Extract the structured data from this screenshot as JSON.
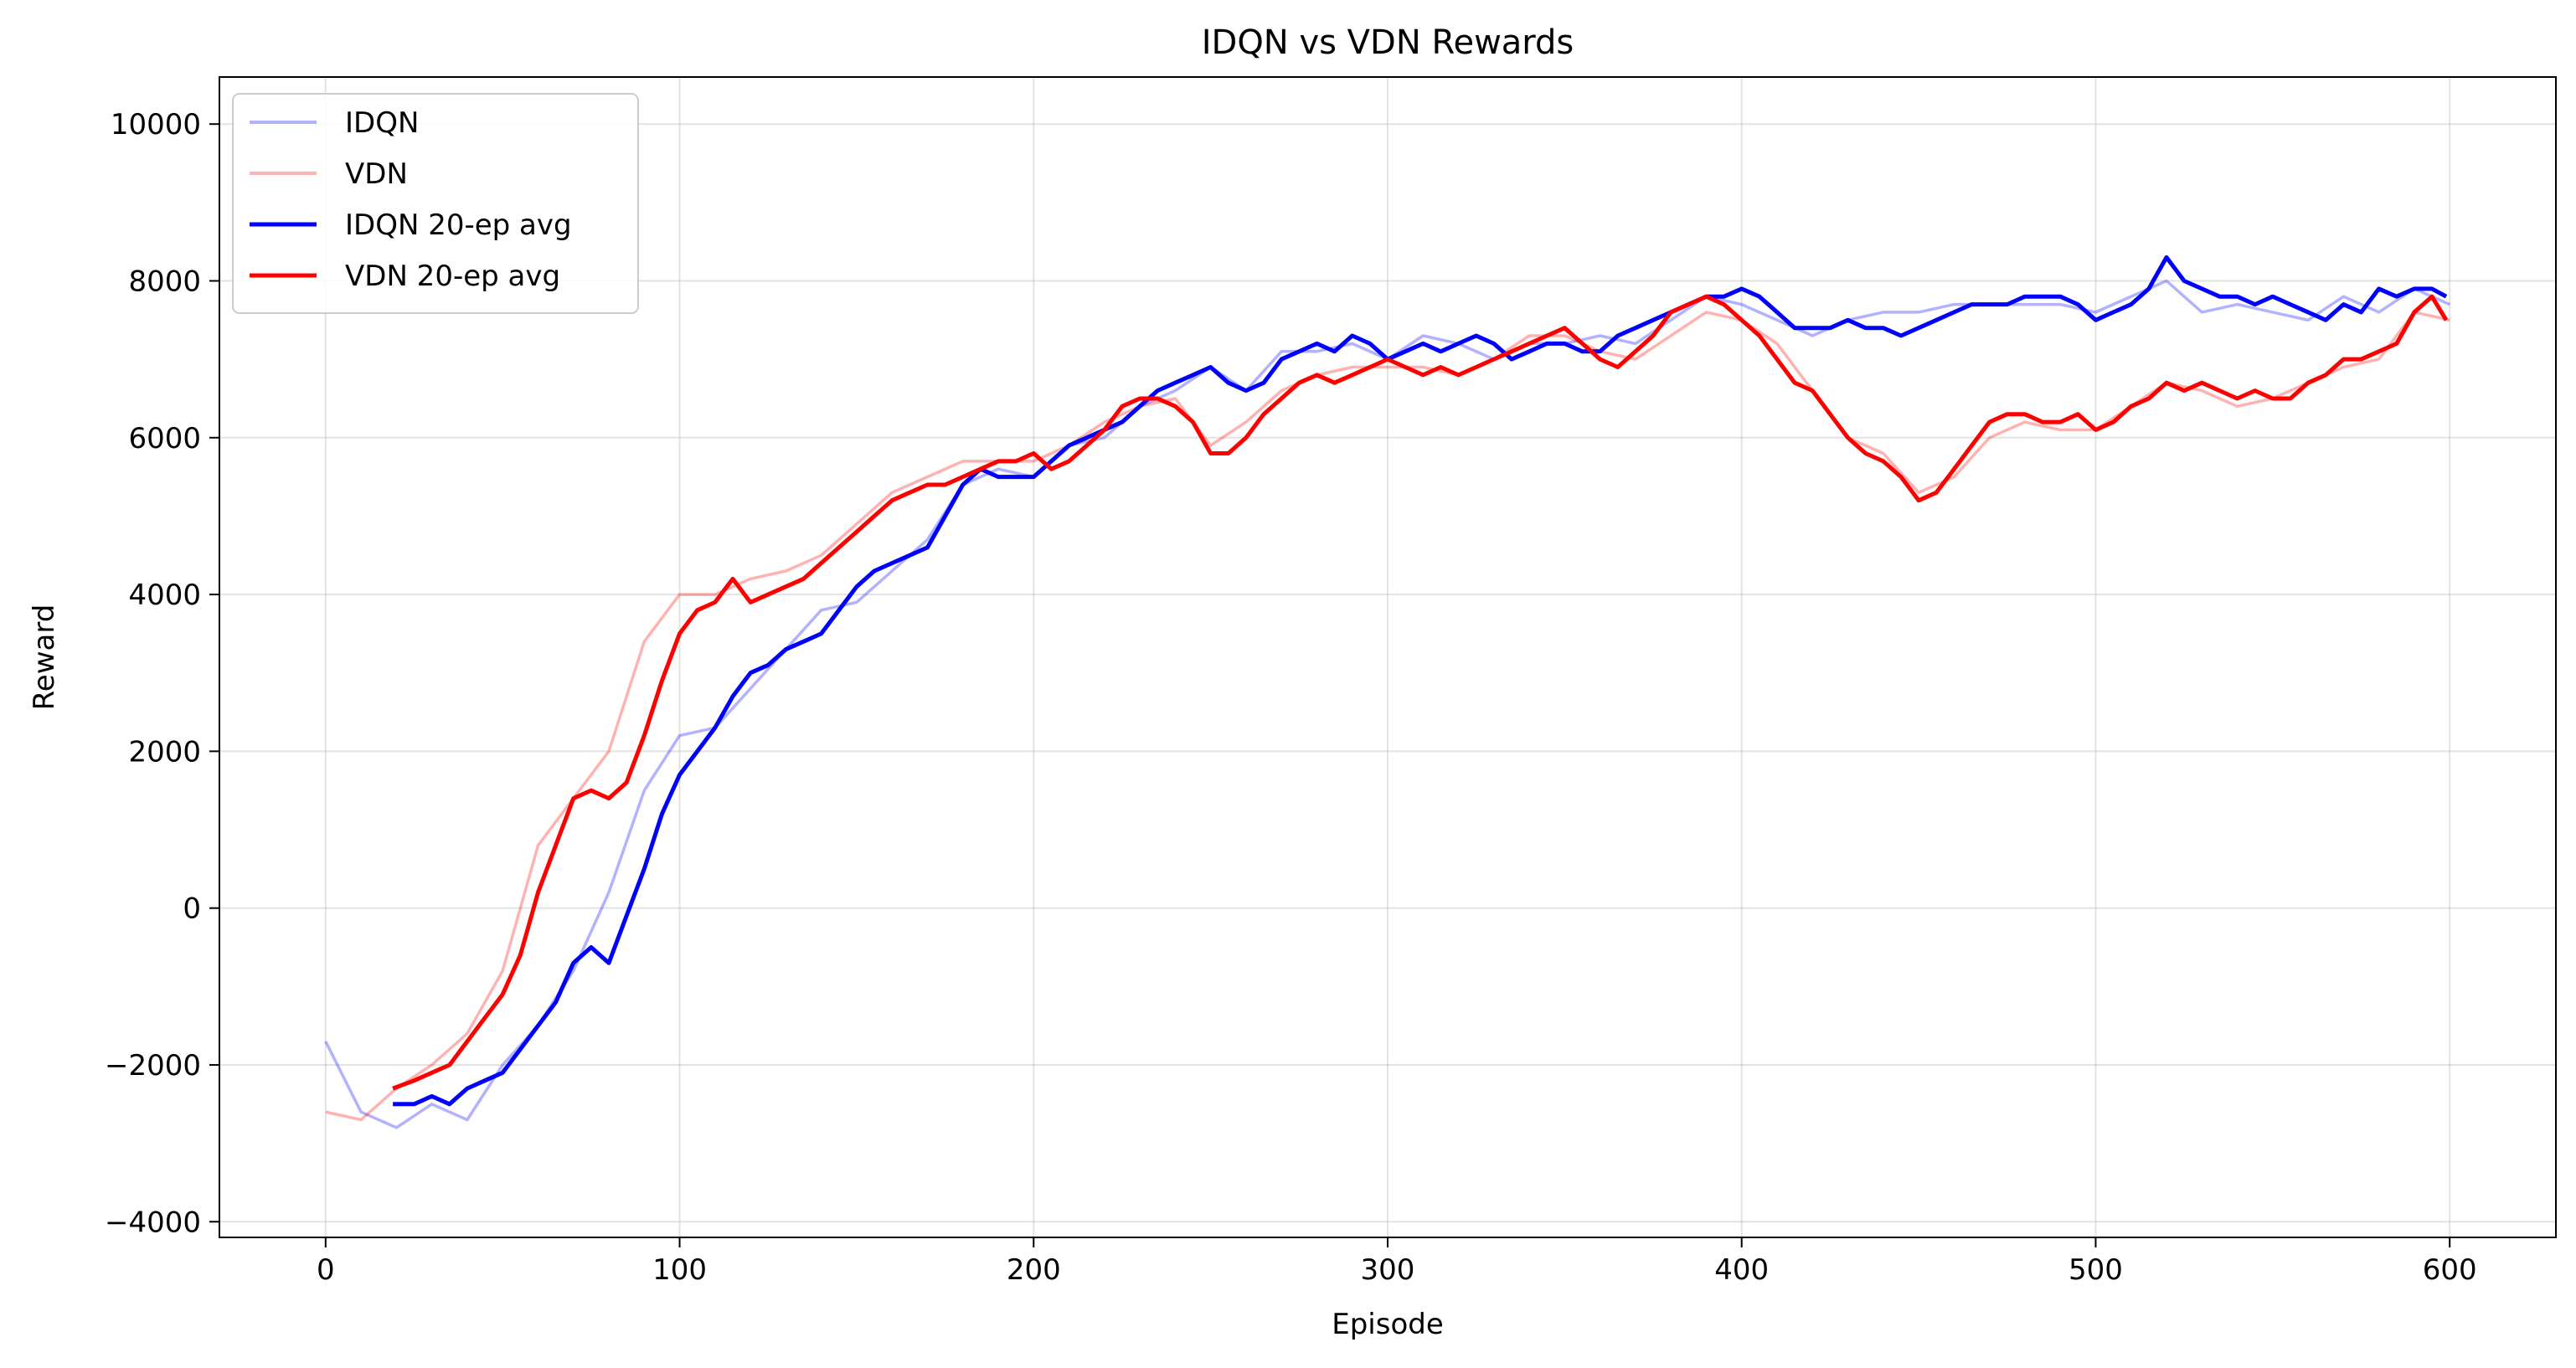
{
  "chart_data": {
    "type": "line",
    "title": "IDQN vs VDN Rewards",
    "xlabel": "Episode",
    "ylabel": "Reward",
    "xlim": [
      -30,
      630
    ],
    "ylim": [
      -4200,
      10600
    ],
    "xticks": [
      0,
      100,
      200,
      300,
      400,
      500,
      600
    ],
    "xtick_labels": [
      "0",
      "100",
      "200",
      "300",
      "400",
      "500",
      "600"
    ],
    "yticks": [
      -4000,
      -2000,
      0,
      2000,
      4000,
      6000,
      8000,
      10000
    ],
    "ytick_labels": [
      "−4000",
      "−2000",
      "0",
      "2000",
      "4000",
      "6000",
      "8000",
      "10000"
    ],
    "grid": true,
    "legend_position": "top-left",
    "series": [
      {
        "name": "IDQN",
        "color": "#0000ff",
        "opacity": 0.3,
        "role": "raw",
        "x": [
          0,
          10,
          20,
          30,
          40,
          50,
          60,
          70,
          80,
          90,
          100,
          110,
          120,
          130,
          140,
          150,
          160,
          170,
          180,
          190,
          200,
          210,
          220,
          230,
          240,
          250,
          260,
          270,
          280,
          290,
          300,
          310,
          320,
          330,
          340,
          350,
          360,
          370,
          380,
          390,
          400,
          410,
          420,
          430,
          440,
          450,
          460,
          470,
          480,
          490,
          500,
          510,
          520,
          530,
          540,
          550,
          560,
          570,
          580,
          590,
          600
        ],
        "y": [
          -1700,
          -2600,
          -2800,
          -2500,
          -2700,
          -2000,
          -1500,
          -800,
          200,
          1500,
          2200,
          2300,
          2800,
          3300,
          3800,
          3900,
          4300,
          4700,
          5400,
          5600,
          5500,
          5900,
          6000,
          6400,
          6600,
          6900,
          6600,
          7100,
          7100,
          7200,
          7000,
          7300,
          7200,
          7000,
          7200,
          7200,
          7300,
          7200,
          7500,
          7800,
          7700,
          7500,
          7300,
          7500,
          7600,
          7600,
          7700,
          7700,
          7700,
          7700,
          7600,
          7800,
          8000,
          7600,
          7700,
          7600,
          7500,
          7800,
          7600,
          7900,
          7700
        ]
      },
      {
        "name": "VDN",
        "color": "#ff0000",
        "opacity": 0.3,
        "role": "raw",
        "x": [
          0,
          10,
          20,
          30,
          40,
          50,
          60,
          70,
          80,
          90,
          100,
          110,
          120,
          130,
          140,
          150,
          160,
          170,
          180,
          190,
          200,
          210,
          220,
          230,
          240,
          250,
          260,
          270,
          280,
          290,
          300,
          310,
          320,
          330,
          340,
          350,
          360,
          370,
          380,
          390,
          400,
          410,
          420,
          430,
          440,
          450,
          460,
          470,
          480,
          490,
          500,
          510,
          520,
          530,
          540,
          550,
          560,
          570,
          580,
          590,
          600
        ],
        "y": [
          -2600,
          -2700,
          -2300,
          -2000,
          -1600,
          -800,
          800,
          1400,
          2000,
          3400,
          4000,
          4000,
          4200,
          4300,
          4500,
          4900,
          5300,
          5500,
          5700,
          5700,
          5700,
          5900,
          6200,
          6400,
          6500,
          5900,
          6200,
          6600,
          6800,
          6900,
          6900,
          6900,
          6800,
          7000,
          7300,
          7300,
          7100,
          7000,
          7300,
          7600,
          7500,
          7200,
          6600,
          6000,
          5800,
          5300,
          5500,
          6000,
          6200,
          6100,
          6100,
          6400,
          6700,
          6600,
          6400,
          6500,
          6700,
          6900,
          7000,
          7600,
          7500
        ]
      },
      {
        "name": "IDQN 20-ep avg",
        "color": "#0000ff",
        "opacity": 1,
        "role": "avg",
        "x": [
          19,
          25,
          30,
          35,
          40,
          45,
          50,
          55,
          60,
          65,
          70,
          75,
          80,
          85,
          90,
          95,
          100,
          105,
          110,
          115,
          120,
          125,
          130,
          135,
          140,
          145,
          150,
          155,
          160,
          165,
          170,
          175,
          180,
          185,
          190,
          195,
          200,
          205,
          210,
          215,
          220,
          225,
          230,
          235,
          240,
          245,
          250,
          255,
          260,
          265,
          270,
          275,
          280,
          285,
          290,
          295,
          300,
          305,
          310,
          315,
          320,
          325,
          330,
          335,
          340,
          345,
          350,
          355,
          360,
          365,
          370,
          375,
          380,
          385,
          390,
          395,
          400,
          405,
          410,
          415,
          420,
          425,
          430,
          435,
          440,
          445,
          450,
          455,
          460,
          465,
          470,
          475,
          480,
          485,
          490,
          495,
          500,
          505,
          510,
          515,
          520,
          525,
          530,
          535,
          540,
          545,
          550,
          555,
          560,
          565,
          570,
          575,
          580,
          585,
          590,
          595,
          599
        ],
        "y": [
          -2500,
          -2500,
          -2400,
          -2500,
          -2300,
          -2200,
          -2100,
          -1800,
          -1500,
          -1200,
          -700,
          -500,
          -700,
          -100,
          500,
          1200,
          1700,
          2000,
          2300,
          2700,
          3000,
          3100,
          3300,
          3400,
          3500,
          3800,
          4100,
          4300,
          4400,
          4500,
          4600,
          5000,
          5400,
          5600,
          5500,
          5500,
          5500,
          5700,
          5900,
          6000,
          6100,
          6200,
          6400,
          6600,
          6700,
          6800,
          6900,
          6700,
          6600,
          6700,
          7000,
          7100,
          7200,
          7100,
          7300,
          7200,
          7000,
          7100,
          7200,
          7100,
          7200,
          7300,
          7200,
          7000,
          7100,
          7200,
          7200,
          7100,
          7100,
          7300,
          7400,
          7500,
          7600,
          7700,
          7800,
          7800,
          7900,
          7800,
          7600,
          7400,
          7400,
          7400,
          7500,
          7400,
          7400,
          7300,
          7400,
          7500,
          7600,
          7700,
          7700,
          7700,
          7800,
          7800,
          7800,
          7700,
          7500,
          7600,
          7700,
          7900,
          8300,
          8000,
          7900,
          7800,
          7800,
          7700,
          7800,
          7700,
          7600,
          7500,
          7700,
          7600,
          7900,
          7800,
          7900,
          7900,
          7800
        ]
      },
      {
        "name": "VDN 20-ep avg",
        "color": "#ff0000",
        "opacity": 1,
        "role": "avg",
        "x": [
          19,
          25,
          30,
          35,
          40,
          45,
          50,
          55,
          60,
          65,
          70,
          75,
          80,
          85,
          90,
          95,
          100,
          105,
          110,
          115,
          120,
          125,
          130,
          135,
          140,
          145,
          150,
          155,
          160,
          165,
          170,
          175,
          180,
          185,
          190,
          195,
          200,
          205,
          210,
          215,
          220,
          225,
          230,
          235,
          240,
          245,
          250,
          255,
          260,
          265,
          270,
          275,
          280,
          285,
          290,
          295,
          300,
          305,
          310,
          315,
          320,
          325,
          330,
          335,
          340,
          345,
          350,
          355,
          360,
          365,
          370,
          375,
          380,
          385,
          390,
          395,
          400,
          405,
          410,
          415,
          420,
          425,
          430,
          435,
          440,
          445,
          450,
          455,
          460,
          465,
          470,
          475,
          480,
          485,
          490,
          495,
          500,
          505,
          510,
          515,
          520,
          525,
          530,
          535,
          540,
          545,
          550,
          555,
          560,
          565,
          570,
          575,
          580,
          585,
          590,
          595,
          599
        ],
        "y": [
          -2300,
          -2200,
          -2100,
          -2000,
          -1700,
          -1400,
          -1100,
          -600,
          200,
          800,
          1400,
          1500,
          1400,
          1600,
          2200,
          2900,
          3500,
          3800,
          3900,
          4200,
          3900,
          4000,
          4100,
          4200,
          4400,
          4600,
          4800,
          5000,
          5200,
          5300,
          5400,
          5400,
          5500,
          5600,
          5700,
          5700,
          5800,
          5600,
          5700,
          5900,
          6100,
          6400,
          6500,
          6500,
          6400,
          6200,
          5800,
          5800,
          6000,
          6300,
          6500,
          6700,
          6800,
          6700,
          6800,
          6900,
          7000,
          6900,
          6800,
          6900,
          6800,
          6900,
          7000,
          7100,
          7200,
          7300,
          7400,
          7200,
          7000,
          6900,
          7100,
          7300,
          7600,
          7700,
          7800,
          7700,
          7500,
          7300,
          7000,
          6700,
          6600,
          6300,
          6000,
          5800,
          5700,
          5500,
          5200,
          5300,
          5600,
          5900,
          6200,
          6300,
          6300,
          6200,
          6200,
          6300,
          6100,
          6200,
          6400,
          6500,
          6700,
          6600,
          6700,
          6600,
          6500,
          6600,
          6500,
          6500,
          6700,
          6800,
          7000,
          7000,
          7100,
          7200,
          7600,
          7800,
          7500
        ]
      }
    ]
  }
}
